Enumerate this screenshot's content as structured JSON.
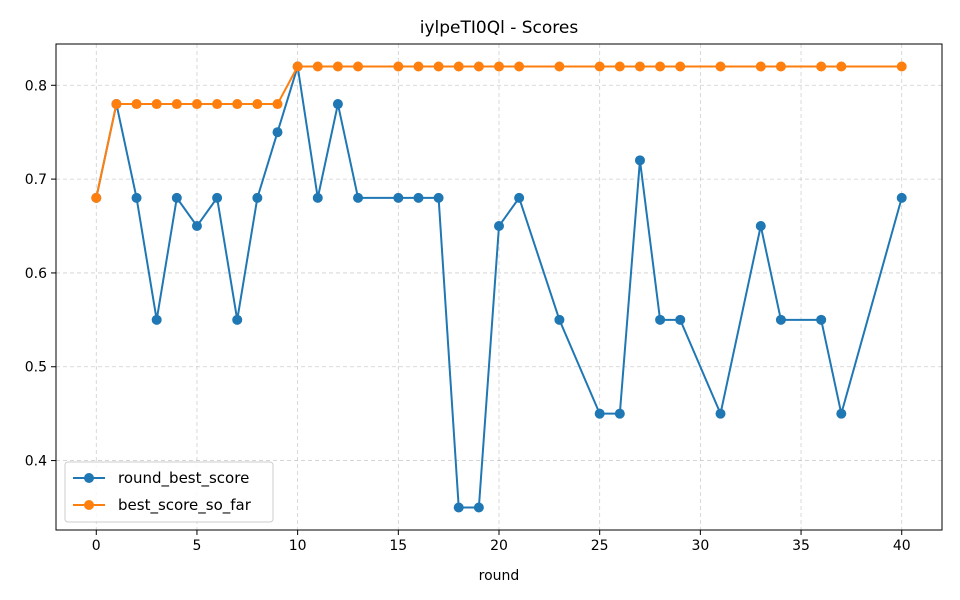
{
  "chart_data": {
    "type": "line",
    "title": "iylpeTI0Ql - Scores",
    "xlabel": "round",
    "ylabel": "",
    "xlim": [
      -2,
      42
    ],
    "ylim": [
      0.326,
      0.844
    ],
    "xticks": [
      0,
      5,
      10,
      15,
      20,
      25,
      30,
      35,
      40
    ],
    "yticks": [
      0.4,
      0.5,
      0.6,
      0.7,
      0.8
    ],
    "grid": true,
    "legend_position": "bottom-left",
    "series": [
      {
        "name": "round_best_score",
        "color": "#1f77b4",
        "x": [
          0,
          1,
          2,
          3,
          4,
          5,
          6,
          7,
          8,
          9,
          10,
          11,
          12,
          13,
          15,
          16,
          17,
          18,
          19,
          20,
          21,
          23,
          25,
          26,
          27,
          28,
          29,
          31,
          33,
          34,
          36,
          37,
          40
        ],
        "values": [
          0.68,
          0.78,
          0.68,
          0.55,
          0.68,
          0.65,
          0.68,
          0.55,
          0.68,
          0.75,
          0.82,
          0.68,
          0.78,
          0.68,
          0.68,
          0.68,
          0.68,
          0.35,
          0.35,
          0.65,
          0.68,
          0.55,
          0.45,
          0.45,
          0.72,
          0.55,
          0.55,
          0.45,
          0.65,
          0.55,
          0.55,
          0.45,
          0.68
        ]
      },
      {
        "name": "best_score_so_far",
        "color": "#ff7f0e",
        "x": [
          0,
          1,
          2,
          3,
          4,
          5,
          6,
          7,
          8,
          9,
          10,
          11,
          12,
          13,
          15,
          16,
          17,
          18,
          19,
          20,
          21,
          23,
          25,
          26,
          27,
          28,
          29,
          31,
          33,
          34,
          36,
          37,
          40
        ],
        "values": [
          0.68,
          0.78,
          0.78,
          0.78,
          0.78,
          0.78,
          0.78,
          0.78,
          0.78,
          0.78,
          0.82,
          0.82,
          0.82,
          0.82,
          0.82,
          0.82,
          0.82,
          0.82,
          0.82,
          0.82,
          0.82,
          0.82,
          0.82,
          0.82,
          0.82,
          0.82,
          0.82,
          0.82,
          0.82,
          0.82,
          0.82,
          0.82,
          0.82
        ]
      }
    ]
  }
}
